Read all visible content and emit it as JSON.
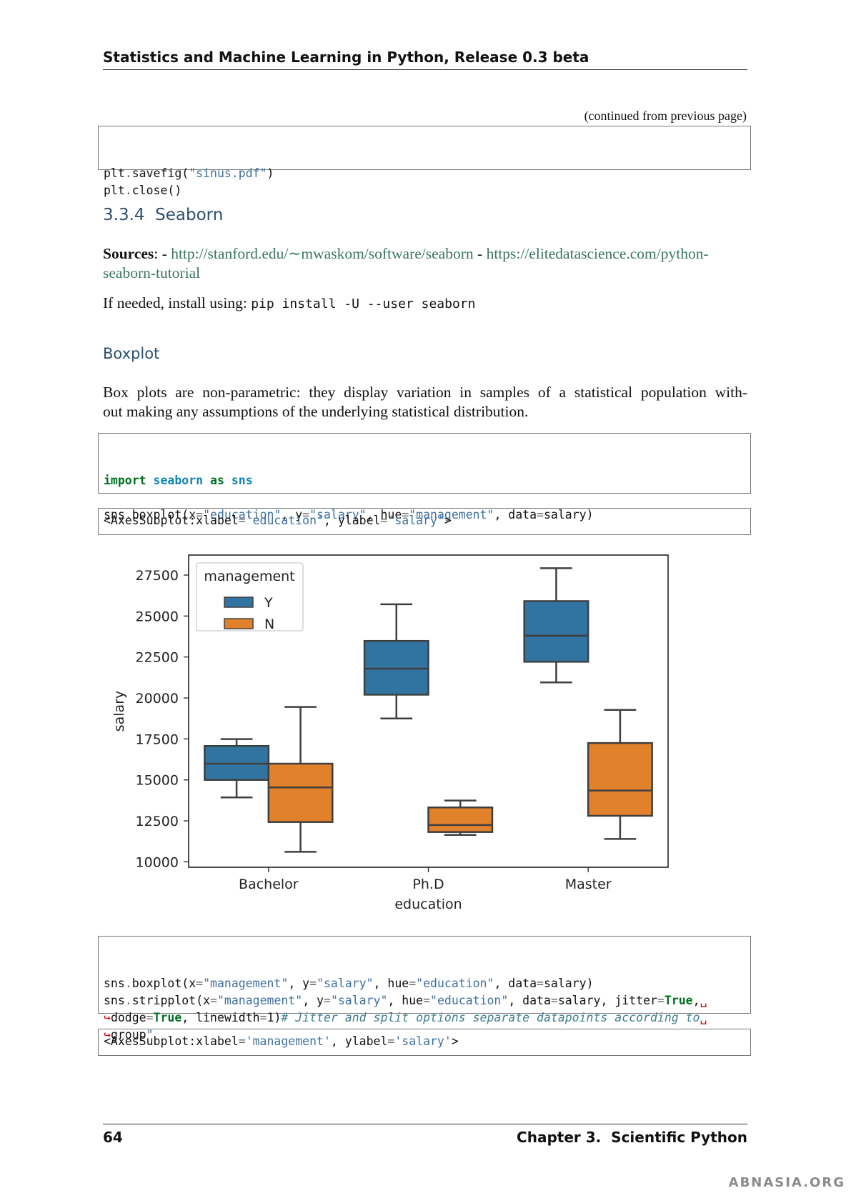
{
  "header": {
    "title": "Statistics and Machine Learning in Python, Release 0.3 beta"
  },
  "continued": "(continued from previous page)",
  "code1": [
    "plt.savefig(\"sinus.pdf\")",
    "plt.close()"
  ],
  "section": {
    "number": "3.3.4",
    "title": "Seaborn"
  },
  "sources": {
    "label": "Sources",
    "colon": ":",
    "dash1": "-",
    "link1": "http://stanford.edu/∼mwaskom/software/seaborn",
    "dash2": "-",
    "link2": "https://elitedatascience.com/python-seaborn-tutorial"
  },
  "install": {
    "text": "If needed, install using:",
    "code": "pip install -U --user seaborn"
  },
  "subsection": "Boxplot",
  "paragraph": [
    "Box plots are non-parametric: they display variation in samples of a statistical population with-",
    "out making any assumptions of the underlying statistical distribution."
  ],
  "code2": [
    "import seaborn as sns",
    "",
    "sns.boxplot(x=\"education\", y=\"salary\", hue=\"management\", data=salary)"
  ],
  "output1": "<AxesSubplot:xlabel='education', ylabel='salary'>",
  "chart_data": {
    "type": "boxplot",
    "categories": [
      "Bachelor",
      "Ph.D",
      "Master"
    ],
    "x_label": "education",
    "y_label": "salary",
    "legend_title": "management",
    "legend_position": "upper left",
    "series": [
      {
        "name": "Y",
        "color": "#3274a1",
        "whisker_low": [
          13930,
          18750,
          20950
        ],
        "q1": [
          15000,
          20200,
          22210
        ],
        "median": [
          15990,
          21790,
          23800
        ],
        "q3": [
          17070,
          23480,
          25910
        ],
        "whisker_high": [
          17490,
          25720,
          27920
        ]
      },
      {
        "name": "N",
        "color": "#e1812c",
        "whisker_low": [
          10610,
          11640,
          11400
        ],
        "q1": [
          12430,
          11820,
          12810
        ],
        "median": [
          14540,
          12250,
          14350
        ],
        "q3": [
          15990,
          13320,
          17250
        ],
        "whisker_high": [
          19450,
          13740,
          19270
        ]
      }
    ],
    "ylim": [
      9670,
      28720
    ],
    "yticks": [
      10000,
      12500,
      15000,
      17500,
      20000,
      22500,
      25000,
      27500
    ]
  },
  "code3": [
    "sns.boxplot(x=\"management\", y=\"salary\", hue=\"education\", data=salary)",
    "sns.stripplot(x=\"management\", y=\"salary\", hue=\"education\", data=salary, jitter=True,␣",
    "↪dodge=True, linewidth=1)# Jitter and split options separate datapoints according to␣",
    "↪group\""
  ],
  "output2": "<AxesSubplot:xlabel='management', ylabel='salary'>",
  "footer": {
    "page": "64",
    "chapter": "Chapter 3.  Scientific Python"
  },
  "watermark": "ABNASIA.ORG"
}
